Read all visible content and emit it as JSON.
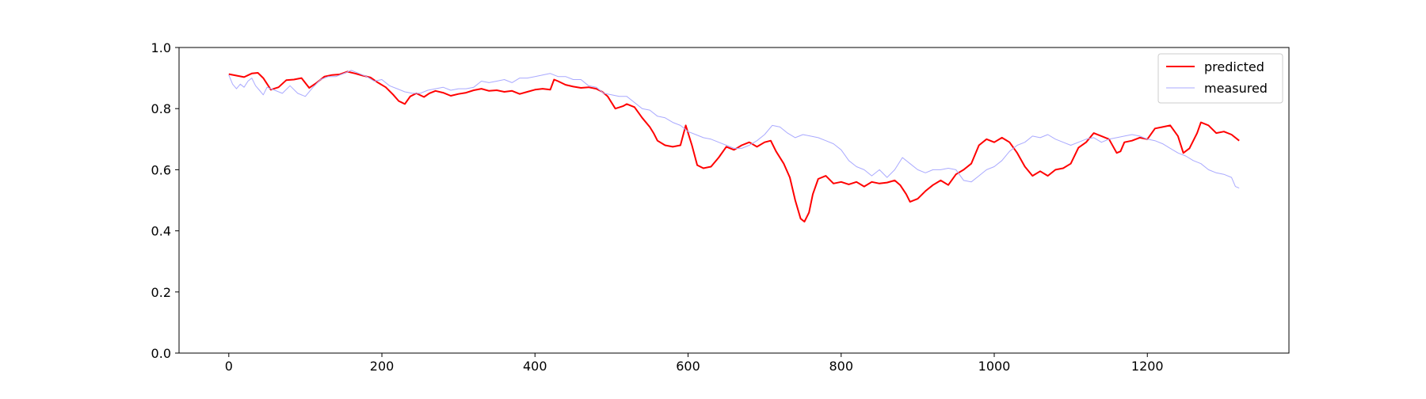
{
  "chart_data": {
    "type": "line",
    "title": "",
    "xlabel": "",
    "ylabel": "",
    "xlim": [
      -65,
      1385
    ],
    "ylim": [
      0.0,
      1.0
    ],
    "xticks": [
      0,
      200,
      400,
      600,
      800,
      1000,
      1200
    ],
    "xtick_labels": [
      "0",
      "200",
      "400",
      "600",
      "800",
      "1000",
      "1200"
    ],
    "yticks": [
      0.0,
      0.2,
      0.4,
      0.6,
      0.8,
      1.0
    ],
    "ytick_labels": [
      "0.0",
      "0.2",
      "0.4",
      "0.6",
      "0.8",
      "1.0"
    ],
    "grid": false,
    "legend_position": "top-right",
    "series": [
      {
        "name": "predicted",
        "color": "#ff0000",
        "x": [
          0,
          10,
          20,
          30,
          38,
          45,
          55,
          65,
          75,
          85,
          95,
          105,
          115,
          125,
          135,
          145,
          155,
          165,
          175,
          185,
          195,
          205,
          215,
          222,
          230,
          237,
          245,
          255,
          262,
          270,
          280,
          290,
          300,
          310,
          320,
          330,
          340,
          350,
          360,
          370,
          380,
          390,
          400,
          410,
          420,
          425,
          430,
          440,
          450,
          460,
          470,
          480,
          488,
          495,
          505,
          515,
          520,
          530,
          540,
          550,
          555,
          560,
          570,
          580,
          590,
          597,
          605,
          612,
          620,
          630,
          640,
          650,
          660,
          670,
          680,
          690,
          700,
          708,
          715,
          725,
          733,
          740,
          747,
          752,
          758,
          763,
          770,
          780,
          790,
          800,
          810,
          820,
          830,
          840,
          850,
          860,
          870,
          877,
          885,
          890,
          900,
          910,
          920,
          930,
          940,
          950,
          960,
          970,
          980,
          990,
          1000,
          1010,
          1020,
          1030,
          1040,
          1050,
          1060,
          1070,
          1080,
          1090,
          1100,
          1110,
          1120,
          1130,
          1140,
          1150,
          1160,
          1165,
          1170,
          1180,
          1190,
          1200,
          1210,
          1220,
          1230,
          1240,
          1247,
          1255,
          1265,
          1270,
          1280,
          1290,
          1300,
          1310,
          1320
        ],
        "values": [
          0.913,
          0.908,
          0.903,
          0.915,
          0.917,
          0.9,
          0.862,
          0.87,
          0.893,
          0.895,
          0.9,
          0.868,
          0.885,
          0.905,
          0.91,
          0.912,
          0.921,
          0.915,
          0.908,
          0.902,
          0.885,
          0.87,
          0.845,
          0.825,
          0.815,
          0.84,
          0.85,
          0.838,
          0.85,
          0.858,
          0.852,
          0.842,
          0.848,
          0.852,
          0.86,
          0.865,
          0.858,
          0.86,
          0.855,
          0.858,
          0.848,
          0.855,
          0.862,
          0.865,
          0.862,
          0.895,
          0.89,
          0.878,
          0.872,
          0.868,
          0.87,
          0.865,
          0.855,
          0.84,
          0.8,
          0.808,
          0.815,
          0.805,
          0.77,
          0.74,
          0.72,
          0.695,
          0.68,
          0.675,
          0.68,
          0.745,
          0.68,
          0.615,
          0.605,
          0.61,
          0.64,
          0.675,
          0.665,
          0.68,
          0.69,
          0.675,
          0.69,
          0.695,
          0.66,
          0.62,
          0.575,
          0.5,
          0.44,
          0.43,
          0.46,
          0.52,
          0.57,
          0.58,
          0.555,
          0.56,
          0.552,
          0.56,
          0.545,
          0.56,
          0.555,
          0.558,
          0.565,
          0.55,
          0.52,
          0.495,
          0.505,
          0.53,
          0.55,
          0.565,
          0.55,
          0.585,
          0.6,
          0.62,
          0.68,
          0.7,
          0.69,
          0.705,
          0.69,
          0.655,
          0.61,
          0.58,
          0.595,
          0.58,
          0.6,
          0.605,
          0.62,
          0.672,
          0.69,
          0.72,
          0.71,
          0.7,
          0.655,
          0.66,
          0.69,
          0.695,
          0.705,
          0.7,
          0.735,
          0.74,
          0.745,
          0.71,
          0.655,
          0.67,
          0.72,
          0.755,
          0.745,
          0.72,
          0.725,
          0.715,
          0.695
        ]
      },
      {
        "name": "measured",
        "color": "#aaaaff",
        "x": [
          0,
          5,
          10,
          15,
          20,
          25,
          30,
          35,
          40,
          45,
          50,
          60,
          70,
          80,
          90,
          100,
          110,
          120,
          130,
          140,
          150,
          160,
          170,
          180,
          190,
          200,
          210,
          220,
          230,
          240,
          250,
          260,
          270,
          280,
          290,
          300,
          310,
          320,
          330,
          340,
          350,
          360,
          370,
          380,
          390,
          400,
          410,
          420,
          430,
          440,
          450,
          460,
          470,
          480,
          490,
          500,
          510,
          520,
          530,
          540,
          550,
          560,
          570,
          580,
          590,
          600,
          610,
          620,
          630,
          640,
          650,
          660,
          670,
          680,
          690,
          700,
          710,
          720,
          730,
          740,
          750,
          760,
          770,
          780,
          790,
          800,
          810,
          820,
          830,
          840,
          850,
          860,
          870,
          880,
          890,
          900,
          910,
          920,
          930,
          940,
          950,
          960,
          970,
          980,
          990,
          1000,
          1010,
          1020,
          1030,
          1040,
          1050,
          1060,
          1070,
          1080,
          1090,
          1100,
          1110,
          1120,
          1130,
          1140,
          1150,
          1160,
          1170,
          1180,
          1190,
          1200,
          1210,
          1220,
          1230,
          1240,
          1250,
          1260,
          1270,
          1280,
          1290,
          1300,
          1310,
          1315,
          1320
        ],
        "values": [
          0.91,
          0.88,
          0.865,
          0.88,
          0.87,
          0.89,
          0.9,
          0.875,
          0.86,
          0.845,
          0.87,
          0.86,
          0.85,
          0.875,
          0.85,
          0.84,
          0.87,
          0.895,
          0.905,
          0.905,
          0.915,
          0.925,
          0.915,
          0.905,
          0.89,
          0.895,
          0.875,
          0.865,
          0.855,
          0.85,
          0.85,
          0.86,
          0.865,
          0.87,
          0.86,
          0.865,
          0.865,
          0.87,
          0.89,
          0.885,
          0.89,
          0.895,
          0.885,
          0.9,
          0.9,
          0.905,
          0.91,
          0.915,
          0.905,
          0.905,
          0.895,
          0.895,
          0.875,
          0.87,
          0.85,
          0.845,
          0.84,
          0.84,
          0.82,
          0.8,
          0.795,
          0.775,
          0.77,
          0.755,
          0.745,
          0.725,
          0.715,
          0.705,
          0.7,
          0.69,
          0.68,
          0.67,
          0.67,
          0.68,
          0.695,
          0.715,
          0.745,
          0.74,
          0.72,
          0.705,
          0.715,
          0.71,
          0.705,
          0.695,
          0.685,
          0.665,
          0.63,
          0.61,
          0.6,
          0.58,
          0.6,
          0.575,
          0.6,
          0.64,
          0.62,
          0.6,
          0.59,
          0.6,
          0.6,
          0.605,
          0.6,
          0.565,
          0.56,
          0.58,
          0.6,
          0.61,
          0.63,
          0.66,
          0.68,
          0.69,
          0.71,
          0.705,
          0.715,
          0.7,
          0.69,
          0.68,
          0.69,
          0.7,
          0.705,
          0.69,
          0.7,
          0.705,
          0.71,
          0.715,
          0.71,
          0.7,
          0.695,
          0.685,
          0.67,
          0.655,
          0.645,
          0.63,
          0.62,
          0.6,
          0.59,
          0.585,
          0.575,
          0.545,
          0.54
        ]
      }
    ]
  }
}
